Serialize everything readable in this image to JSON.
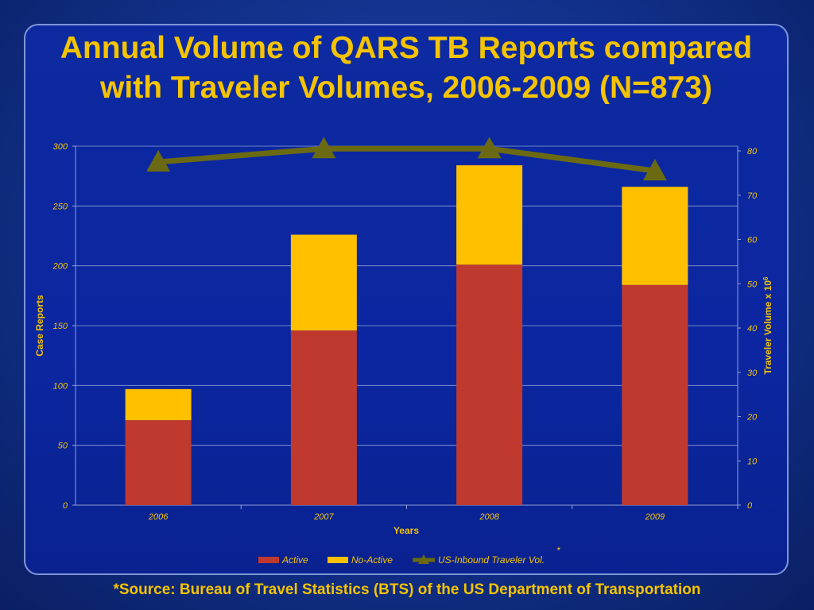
{
  "slide": {
    "title_line1": "Annual Volume of QARS TB Reports compared",
    "title_line2": "with Traveler Volumes, 2006-2009 (N=873)",
    "source": "*Source:  Bureau of Travel Statistics (BTS) of the US Department of Transportation"
  },
  "colors": {
    "active": "#c0392f",
    "no_active": "#ffc000",
    "traveler": "#6b6a12",
    "text": "#f5c400",
    "grid": "#8fa0d8"
  },
  "chart_data": {
    "type": "bar",
    "stacked": true,
    "categories": [
      "2006",
      "2007",
      "2008",
      "2009"
    ],
    "series": [
      {
        "name": "Active",
        "values": [
          71,
          146,
          201,
          184
        ],
        "axis": "left"
      },
      {
        "name": "No-Active",
        "values": [
          26,
          80,
          83,
          82
        ],
        "axis": "left"
      },
      {
        "name": "US-Inbound Traveler Vol.",
        "type": "line",
        "values": [
          77.5,
          80.5,
          80.5,
          75.5
        ],
        "axis": "right"
      }
    ],
    "xlabel": "Years",
    "ylabel": "Case Reports",
    "ylabel_right": "Traveler Volume x 10",
    "ylabel_right_sup": "6",
    "legend_marker": "*",
    "ylim": [
      0,
      300
    ],
    "ylim_right": [
      0,
      80
    ],
    "yticks": [
      "0",
      "50",
      "100",
      "150",
      "200",
      "250",
      "300"
    ],
    "yticks_right": [
      "0",
      "10",
      "20",
      "30",
      "40",
      "50",
      "60",
      "70",
      "80"
    ],
    "grid": true,
    "legend_position": "bottom"
  }
}
